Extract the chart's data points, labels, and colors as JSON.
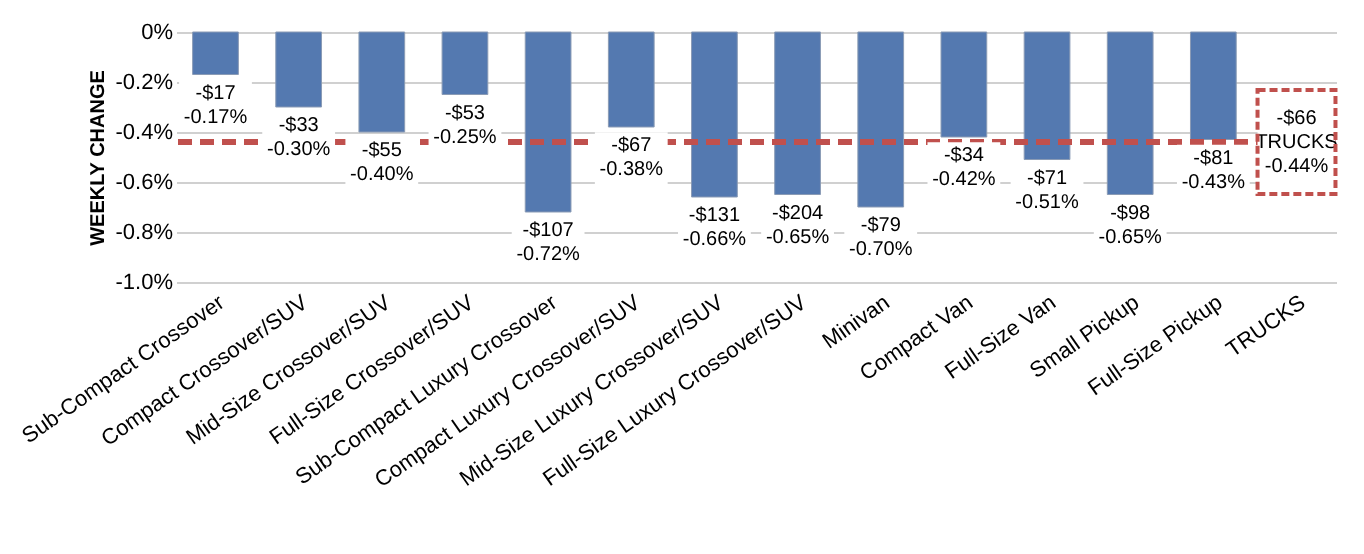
{
  "chart_data": {
    "type": "bar",
    "ylabel": "WEEKLY CHANGE",
    "categories": [
      "Sub-Compact Crossover",
      "Compact Crossover/SUV",
      "Mid-Size Crossover/SUV",
      "Full-Size Crossover/SUV",
      "Sub-Compact Luxury Crossover",
      "Compact Luxury Crossover/SUV",
      "Mid-Size Luxury Crossover/SUV",
      "Full-Size Luxury Crossover/SUV",
      "Minivan",
      "Compact Van",
      "Full-Size Van",
      "Small Pickup",
      "Full-Size Pickup",
      "TRUCKS"
    ],
    "values": [
      -0.17,
      -0.3,
      -0.4,
      -0.25,
      -0.72,
      -0.38,
      -0.66,
      -0.65,
      -0.7,
      -0.42,
      -0.51,
      -0.65,
      -0.43,
      null
    ],
    "value_labels": [
      "-$17\n-0.17%",
      "-$33\n-0.30%",
      "-$55\n-0.40%",
      "-$53\n-0.25%",
      "-$107\n-0.72%",
      "-$67\n-0.38%",
      "-$131\n-0.66%",
      "-$204\n-0.65%",
      "-$79\n-0.70%",
      "-$34\n-0.42%",
      "-$71\n-0.51%",
      "-$98\n-0.65%",
      "-$81\n-0.43%",
      null
    ],
    "color": "#5479b0",
    "ylim": [
      -1.0,
      0
    ],
    "yticks": [
      {
        "value": -1.0,
        "label": "-1.0%"
      },
      {
        "value": -0.8,
        "label": "-0.8%"
      },
      {
        "value": -0.6,
        "label": "-0.6%"
      },
      {
        "value": -0.4,
        "label": "-0.4%"
      },
      {
        "value": -0.2,
        "label": "-0.2%"
      },
      {
        "value": 0,
        "label": "0%"
      }
    ],
    "grid": "y",
    "ref_lines": [
      {
        "axis": "y",
        "value": -0.44,
        "label": "-$66\nTRUCKS\n-0.44%",
        "color": "#c0504d",
        "line_style": "dashed"
      }
    ]
  }
}
